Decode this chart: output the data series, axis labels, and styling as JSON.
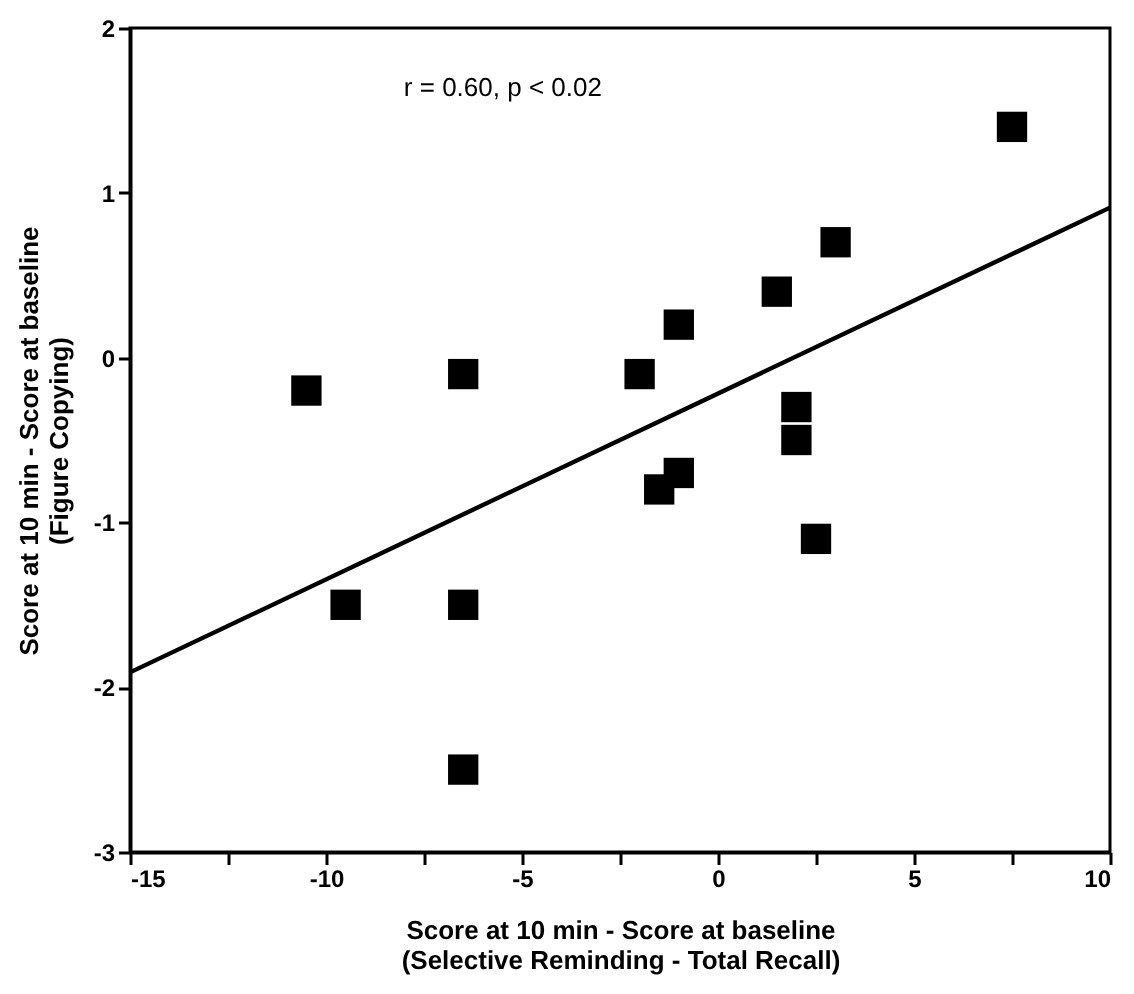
{
  "chart_data": {
    "type": "scatter",
    "xlabel": "Score at 10 min - Score at baseline\n(Selective Reminding - Total Recall)",
    "ylabel": "Score at 10 min - Score at baseline\n(Figure Copying)",
    "annotations": [
      "r = 0.60, p < 0.02"
    ],
    "series": [
      {
        "color": "#000000",
        "marker": "square",
        "x": [
          -10.5,
          -9.5,
          -6.5,
          -6.5,
          -6.5,
          -2,
          -1,
          -1.5,
          -1,
          1.5,
          3,
          2,
          2,
          2.5,
          7.5
        ],
        "values": [
          -0.2,
          -1.5,
          -0.1,
          -1.5,
          -2.5,
          -0.1,
          0.2,
          -0.8,
          -0.7,
          0.4,
          0.7,
          -0.3,
          -0.5,
          -1.1,
          1.4
        ]
      },
      {
        "type": "line",
        "color": "#000000",
        "line_style": "solid",
        "x": [
          -15,
          10
        ],
        "values": [
          -1.91,
          0.91
        ]
      }
    ],
    "xlim": [
      -15,
      10
    ],
    "ylim": [
      -3,
      2
    ],
    "xticks": [
      -15,
      {
        "value": -12.5,
        "label": null
      },
      -10,
      {
        "value": -7.5,
        "label": null
      },
      -5,
      {
        "value": -2.5,
        "label": null
      },
      0,
      {
        "value": 2.5,
        "label": null
      },
      5,
      {
        "value": 7.5,
        "label": null
      },
      10
    ],
    "yticks": [
      -3,
      -2,
      -1,
      0,
      1,
      2
    ],
    "grid": false
  }
}
